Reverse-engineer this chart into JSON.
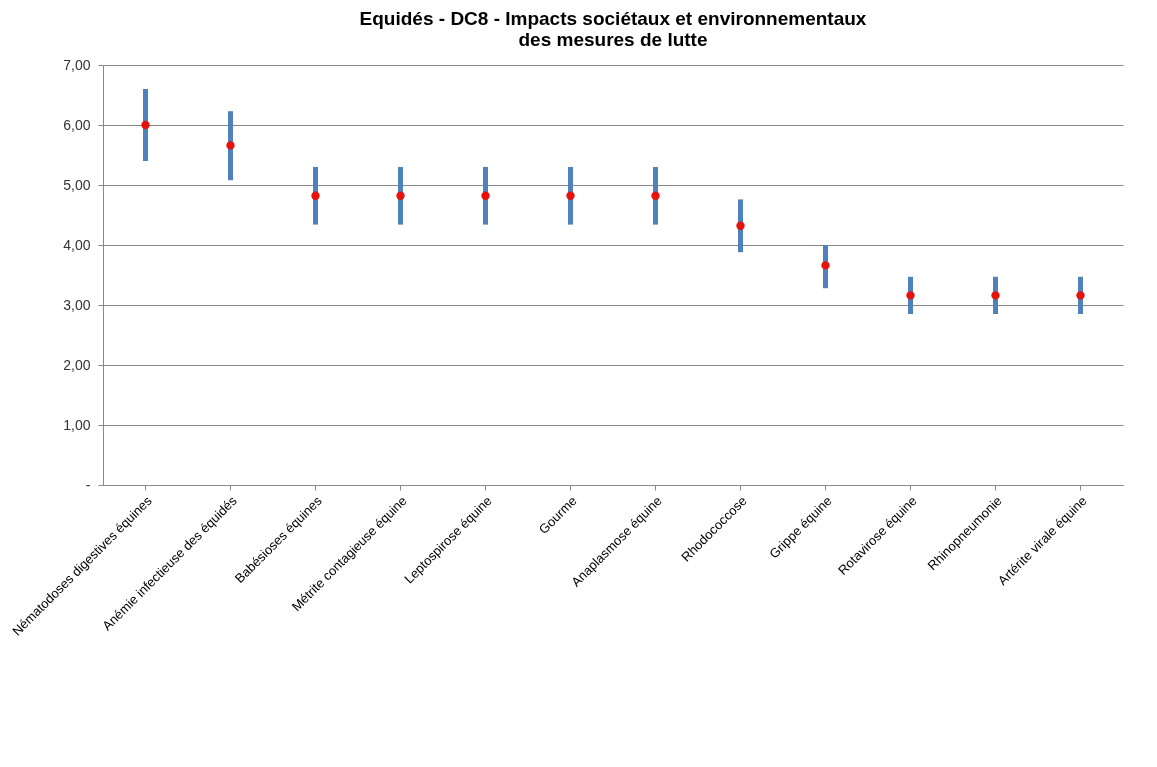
{
  "chart_data": {
    "type": "scatter",
    "title": "Equidés - DC8 - Impacts sociétaux et environnementaux\ndes mesures de lutte",
    "categories": [
      "Nématodoses digestives équines",
      "Anémie infectieuse des équidés",
      "Babésioses équines",
      "Métrite contagieuse équine",
      "Leptospirose équine",
      "Gourme",
      "Anaplasmose équine",
      "Rhodococcose",
      "Grippe équine",
      "Rotavirose équine",
      "Rhinopneumonie",
      "Artérite virale équine"
    ],
    "series": [
      {
        "color": "#e8120c",
        "values": [
          6.0,
          5.66,
          4.82,
          4.82,
          4.82,
          4.82,
          4.82,
          4.32,
          3.66,
          3.16,
          3.16,
          3.16
        ],
        "errors": [
          [
            5.4,
            6.6
          ],
          [
            5.08,
            6.23
          ],
          [
            4.34,
            5.3
          ],
          [
            4.34,
            5.3
          ],
          [
            4.34,
            5.3
          ],
          [
            4.34,
            5.3
          ],
          [
            4.34,
            5.3
          ],
          [
            3.88,
            4.76
          ],
          [
            3.28,
            4.0
          ],
          [
            2.85,
            3.47
          ],
          [
            2.85,
            3.47
          ],
          [
            2.85,
            3.47
          ]
        ]
      }
    ],
    "ylim": [
      0,
      7
    ],
    "yticks": [
      {
        "value": 0,
        "label": "-"
      },
      {
        "value": 1,
        "label": "1,00"
      },
      {
        "value": 2,
        "label": "2,00"
      },
      {
        "value": 3,
        "label": "3,00"
      },
      {
        "value": 4,
        "label": "4,00"
      },
      {
        "value": 5,
        "label": "5,00"
      },
      {
        "value": 6,
        "label": "6,00"
      },
      {
        "value": 7,
        "label": "7,00"
      }
    ],
    "grid": "y",
    "marker": "circle"
  }
}
